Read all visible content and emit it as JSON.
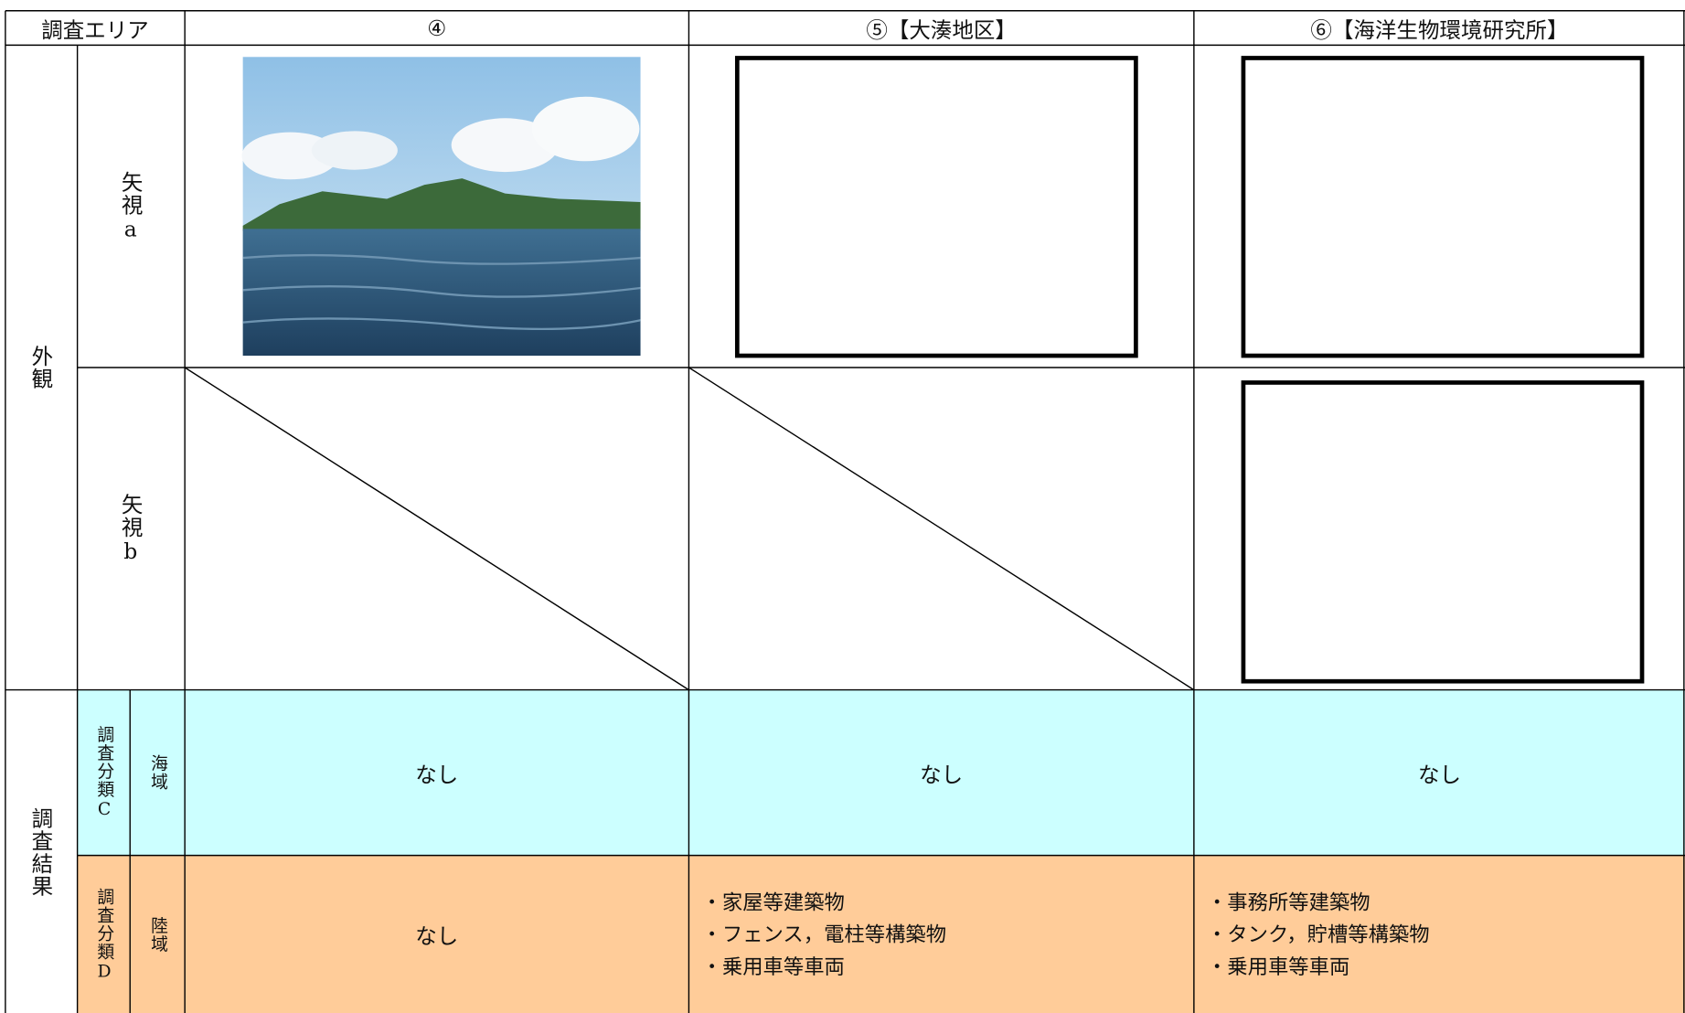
{
  "header": {
    "area": "調査エリア",
    "columns": [
      "④",
      "⑤【大湊地区】",
      "⑥【海洋生物環境研究所】"
    ]
  },
  "rows": {
    "appearance": "外観",
    "view_a": "矢視a",
    "view_b": "矢視b",
    "results": "調査結果",
    "class_c": "調査分類C",
    "sea": "海域",
    "class_d": "調査分類D",
    "land": "陸域"
  },
  "cells": {
    "sea": [
      "なし",
      "なし",
      "なし"
    ],
    "land": [
      [
        "なし"
      ],
      [
        "・家屋等建築物",
        "・フェンス，電柱等構築物",
        "・乗用車等車両"
      ],
      [
        "・事務所等建築物",
        "・タンク，貯槽等構築物",
        "・乗用車等車両"
      ]
    ]
  }
}
